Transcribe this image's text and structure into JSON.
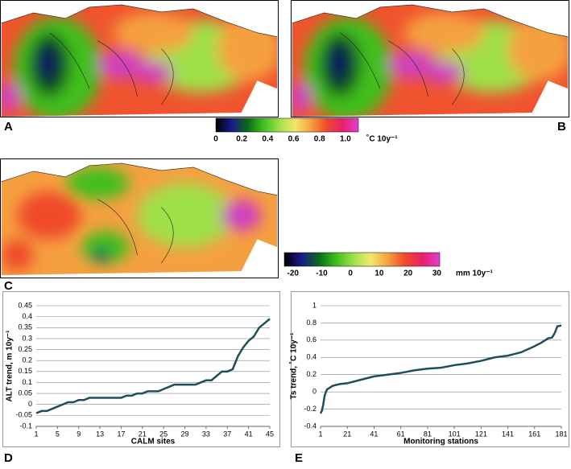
{
  "panel_labels": [
    "A",
    "B",
    "C",
    "D",
    "E"
  ],
  "colorbars": [
    {
      "lim": [
        0,
        1.1
      ],
      "ticks": [
        0,
        0.2,
        0.4,
        0.6,
        0.8,
        {
          "value": 1,
          "label": "1.0"
        }
      ],
      "unit": "˚C 10y⁻¹",
      "colors": [
        "#000000",
        "#1a1a8c",
        "#0a6a1a",
        "#3fbf1f",
        "#9fe04a",
        "#f2e86a",
        "#f5a040",
        "#f04a2a",
        "#e8206a",
        "#e040d0"
      ]
    },
    {
      "lim": [
        -23,
        31
      ],
      "ticks": [
        -20,
        -10,
        0,
        10,
        20,
        30
      ],
      "unit": "mm 10y⁻¹",
      "colors": [
        "#000000",
        "#1a1a8c",
        "#0a6a1a",
        "#3fbf1f",
        "#9fe04a",
        "#f2e86a",
        "#f5a040",
        "#f04a2a",
        "#e8206a",
        "#e040d0"
      ]
    }
  ],
  "chart_data": [
    {
      "type": "line",
      "ylabel": "ALT trend, m 10y⁻¹",
      "xlabel": "CALM sites",
      "color": "#1f4e5a",
      "grid": true,
      "x": [
        1,
        2,
        3,
        4,
        5,
        6,
        7,
        8,
        9,
        10,
        11,
        12,
        13,
        14,
        15,
        16,
        17,
        18,
        19,
        20,
        21,
        22,
        23,
        24,
        25,
        26,
        27,
        28,
        29,
        30,
        31,
        32,
        33,
        34,
        35,
        36,
        37,
        38,
        39,
        40,
        41,
        42,
        43,
        44,
        45
      ],
      "values": [
        -0.04,
        -0.03,
        -0.03,
        -0.02,
        -0.01,
        0,
        0.01,
        0.01,
        0.02,
        0.02,
        0.03,
        0.03,
        0.03,
        0.03,
        0.03,
        0.03,
        0.03,
        0.04,
        0.04,
        0.05,
        0.05,
        0.06,
        0.06,
        0.06,
        0.07,
        0.08,
        0.09,
        0.09,
        0.09,
        0.09,
        0.09,
        0.1,
        0.11,
        0.11,
        0.13,
        0.15,
        0.15,
        0.16,
        0.22,
        0.26,
        0.29,
        0.31,
        0.35,
        0.37,
        0.39
      ],
      "xlim": [
        1,
        45
      ],
      "xticks": [
        1,
        5,
        9,
        13,
        17,
        21,
        25,
        29,
        33,
        37,
        41,
        45
      ],
      "ylim": [
        -0.1,
        0.45
      ],
      "yticks": [
        -0.1,
        -0.05,
        0,
        0.05,
        0.1,
        0.15,
        0.2,
        0.25,
        0.3,
        0.35,
        0.4,
        0.45
      ]
    },
    {
      "type": "line",
      "ylabel": "Ts trend, ˚C 10y⁻¹",
      "xlabel": "Monitoring stations",
      "color": "#1f4e5a",
      "grid": true,
      "x": [
        1,
        2,
        3,
        4,
        5,
        6,
        8,
        10,
        15,
        21,
        31,
        41,
        51,
        61,
        71,
        81,
        91,
        101,
        111,
        121,
        131,
        141,
        151,
        161,
        166,
        171,
        174,
        176,
        178,
        181
      ],
      "values": [
        -0.25,
        -0.22,
        -0.15,
        -0.05,
        0,
        0.03,
        0.05,
        0.07,
        0.09,
        0.1,
        0.14,
        0.18,
        0.2,
        0.22,
        0.25,
        0.27,
        0.28,
        0.31,
        0.33,
        0.36,
        0.4,
        0.42,
        0.46,
        0.53,
        0.57,
        0.62,
        0.63,
        0.68,
        0.76,
        0.77
      ],
      "xlim": [
        1,
        181
      ],
      "xticks": [
        1,
        21,
        41,
        61,
        81,
        101,
        121,
        141,
        161,
        181
      ],
      "ylim": [
        -0.4,
        1
      ],
      "yticks": [
        -0.4,
        -0.2,
        0,
        0.2,
        0.4,
        0.6,
        0.8,
        1
      ]
    }
  ]
}
